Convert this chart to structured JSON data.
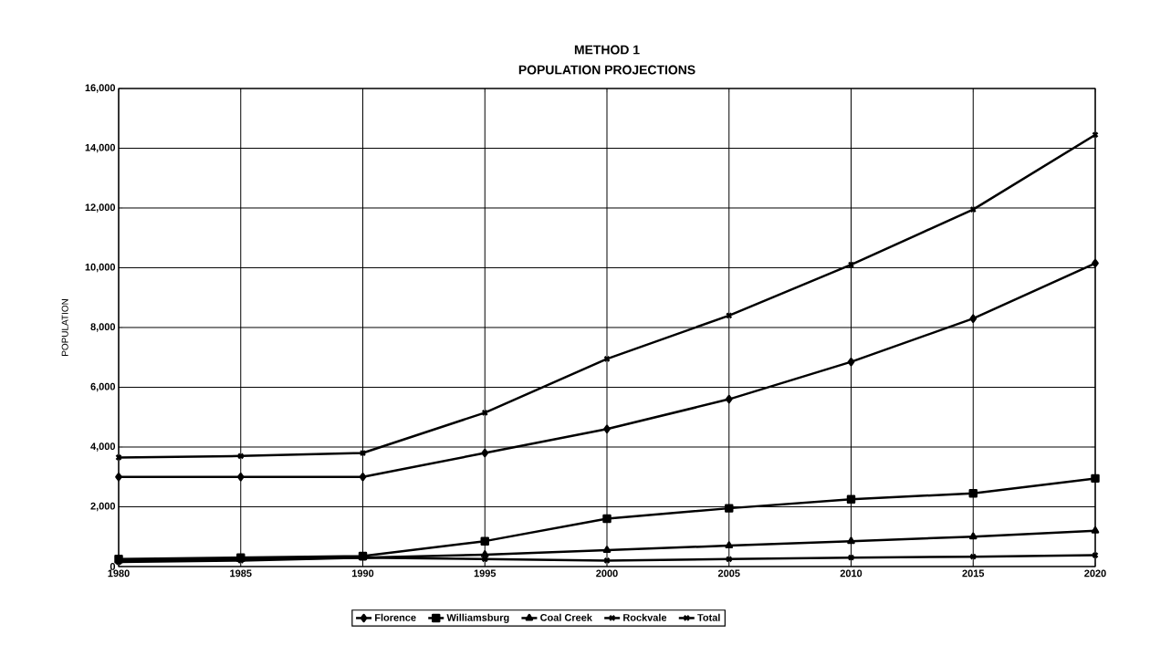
{
  "chart_data": {
    "type": "line",
    "title": "METHOD 1",
    "subtitle": "POPULATION PROJECTIONS",
    "ylabel": "POPULATION",
    "x": [
      1980,
      1985,
      1990,
      1995,
      2000,
      2005,
      2010,
      2015,
      2020
    ],
    "xlim": [
      1980,
      2020
    ],
    "xticks": [
      1980,
      1985,
      1990,
      1995,
      2000,
      2005,
      2010,
      2015,
      2020
    ],
    "ylim": [
      0,
      16000
    ],
    "yticks": [
      0,
      {
        "value": 2000,
        "label": "2,000"
      },
      {
        "value": 4000,
        "label": "4,000"
      },
      {
        "value": 6000,
        "label": "6,000"
      },
      {
        "value": 8000,
        "label": "8,000"
      },
      {
        "value": 10000,
        "label": "10,000"
      },
      {
        "value": 12000,
        "label": "12,000"
      },
      {
        "value": 14000,
        "label": "14,000"
      },
      {
        "value": 16000,
        "label": "16,000"
      }
    ],
    "grid": true,
    "legend": "bottom",
    "line_style": "solid",
    "series": [
      {
        "name": "Florence",
        "color": "#000000",
        "marker": "diamond",
        "values": [
          3000,
          3000,
          3000,
          3800,
          4600,
          5600,
          6850,
          8300,
          10150
        ]
      },
      {
        "name": "Williamsburg",
        "color": "#000000",
        "marker": "square",
        "values": [
          250,
          300,
          350,
          850,
          1600,
          1950,
          2250,
          2450,
          2950
        ]
      },
      {
        "name": "Coal Creek",
        "color": "#000000",
        "marker": "triangle",
        "values": [
          200,
          250,
          300,
          400,
          550,
          700,
          850,
          1000,
          1200
        ]
      },
      {
        "name": "Rockvale",
        "color": "#000000",
        "marker": "cross",
        "values": [
          150,
          200,
          300,
          250,
          200,
          250,
          300,
          330,
          380
        ]
      },
      {
        "name": "Total",
        "color": "#000000",
        "marker": "cross",
        "values": [
          3650,
          3700,
          3800,
          5150,
          6950,
          8400,
          10100,
          11950,
          14450
        ]
      }
    ]
  }
}
